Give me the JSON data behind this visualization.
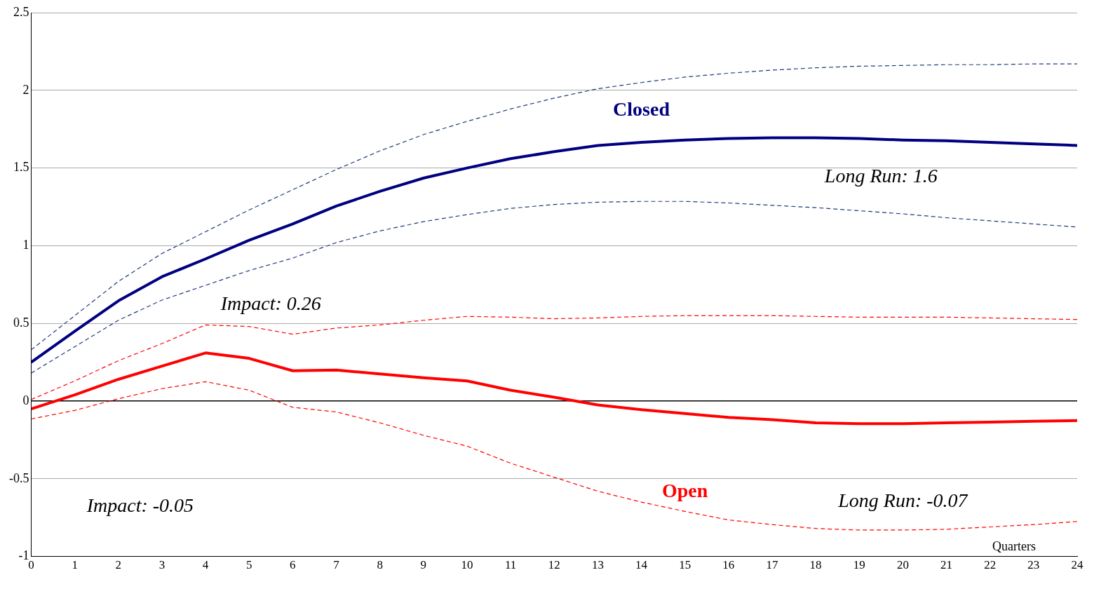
{
  "chart_data": {
    "type": "line",
    "xlabel": "Quarters",
    "x": [
      0,
      1,
      2,
      3,
      4,
      5,
      6,
      7,
      8,
      9,
      10,
      11,
      12,
      13,
      14,
      15,
      16,
      17,
      18,
      19,
      20,
      21,
      22,
      23,
      24
    ],
    "xlim": [
      0,
      24
    ],
    "xticks": [
      0,
      1,
      2,
      3,
      4,
      5,
      6,
      7,
      8,
      9,
      10,
      11,
      12,
      13,
      14,
      15,
      16,
      17,
      18,
      19,
      20,
      21,
      22,
      23,
      24
    ],
    "ylim": [
      -1,
      2.5
    ],
    "yticks": [
      -1,
      -0.5,
      0,
      0.5,
      1,
      1.5,
      2,
      2.5
    ],
    "grid": "y",
    "legend": false,
    "marker": "none",
    "annotations": [
      "Impact: 0.26",
      "Long Run: 1.6",
      "Impact: -0.05",
      "Long Run: -0.07"
    ],
    "series": [
      {
        "name": "Closed",
        "color": "#000080",
        "line_style": "solid",
        "values": [
          0.25,
          0.45,
          0.645,
          0.8,
          0.915,
          1.035,
          1.14,
          1.255,
          1.35,
          1.435,
          1.5,
          1.56,
          1.605,
          1.645,
          1.665,
          1.68,
          1.69,
          1.695,
          1.695,
          1.69,
          1.68,
          1.675,
          1.665,
          1.655,
          1.645
        ]
      },
      {
        "color": "#1f3a7a",
        "line_style": "dashed",
        "values": [
          0.33,
          0.55,
          0.77,
          0.95,
          1.09,
          1.23,
          1.36,
          1.49,
          1.61,
          1.715,
          1.8,
          1.88,
          1.95,
          2.01,
          2.05,
          2.085,
          2.11,
          2.13,
          2.145,
          2.155,
          2.16,
          2.165,
          2.165,
          2.17,
          2.17
        ]
      },
      {
        "color": "#1f3a7a",
        "line_style": "dashed",
        "values": [
          0.18,
          0.35,
          0.52,
          0.65,
          0.745,
          0.84,
          0.92,
          1.02,
          1.095,
          1.155,
          1.2,
          1.24,
          1.265,
          1.28,
          1.285,
          1.285,
          1.275,
          1.26,
          1.245,
          1.225,
          1.205,
          1.18,
          1.16,
          1.14,
          1.12
        ]
      },
      {
        "name": "Open",
        "color": "#ff0000",
        "line_style": "solid",
        "values": [
          -0.05,
          0.04,
          0.14,
          0.225,
          0.31,
          0.275,
          0.195,
          0.2,
          0.175,
          0.15,
          0.13,
          0.07,
          0.025,
          -0.025,
          -0.055,
          -0.08,
          -0.105,
          -0.12,
          -0.14,
          -0.145,
          -0.145,
          -0.14,
          -0.135,
          -0.13,
          -0.125
        ]
      },
      {
        "color": "#ff0000",
        "line_style": "dashed",
        "values": [
          0.01,
          0.13,
          0.26,
          0.37,
          0.49,
          0.48,
          0.43,
          0.47,
          0.49,
          0.52,
          0.545,
          0.54,
          0.53,
          0.535,
          0.545,
          0.55,
          0.55,
          0.55,
          0.545,
          0.54,
          0.54,
          0.54,
          0.535,
          0.53,
          0.525
        ]
      },
      {
        "color": "#ff0000",
        "line_style": "dashed",
        "values": [
          -0.115,
          -0.06,
          0.015,
          0.08,
          0.125,
          0.07,
          -0.04,
          -0.07,
          -0.14,
          -0.22,
          -0.29,
          -0.4,
          -0.49,
          -0.58,
          -0.65,
          -0.71,
          -0.765,
          -0.795,
          -0.82,
          -0.83,
          -0.83,
          -0.825,
          -0.81,
          -0.795,
          -0.775
        ]
      }
    ]
  }
}
